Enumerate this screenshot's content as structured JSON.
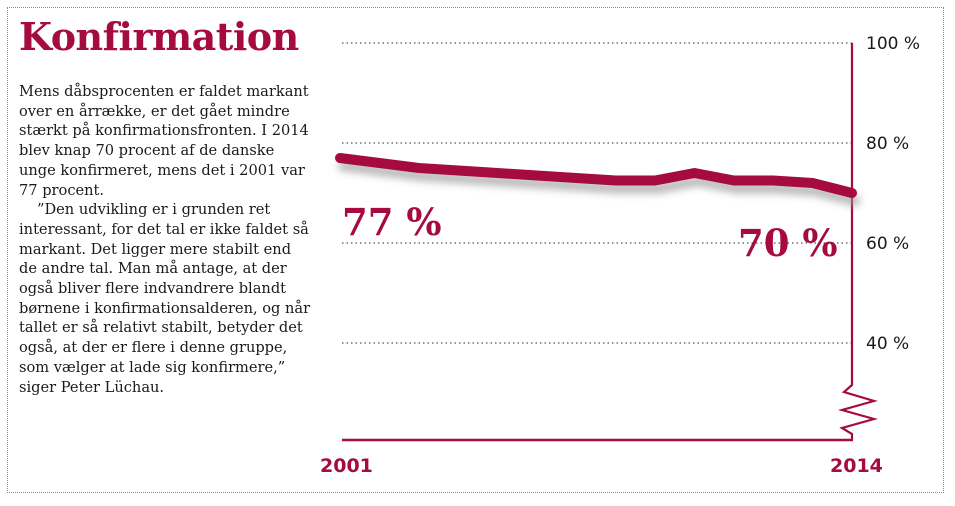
{
  "title": "Konfirmation",
  "paragraphs": [
    "Mens dåbsprocenten er faldet markant over en årrække, er det gået mindre stærkt på konfirmationsfronten. I 2014 blev knap 70 procent af de danske unge konfirmeret, mens det i 2001 var 77 procent.",
    "”Den udvikling er i grunden ret interessant, for det tal er ikke faldet så markant. Det ligger mere stabilt end de andre tal. Man må antage, at der også bliver flere indvandrere blandt børnene i konfirmationsalderen, og når tallet er så relativt stabilt, betyder det også, at der er flere i denne gruppe, som vælger at lade sig konfirmere,” siger Peter Lüchau."
  ],
  "chart_data": {
    "type": "line",
    "x": [
      2001,
      2002,
      2003,
      2004,
      2005,
      2006,
      2007,
      2008,
      2009,
      2010,
      2011,
      2012,
      2013,
      2014
    ],
    "values": [
      77,
      76,
      75,
      74.5,
      74,
      73.5,
      73,
      72.5,
      72.5,
      74,
      72.5,
      72.5,
      72,
      70
    ],
    "ylim": [
      20,
      100
    ],
    "yticks": [
      "100 %",
      "80 %",
      "60 %",
      "40 %"
    ],
    "ytick_values": [
      100,
      80,
      60,
      40
    ],
    "xticks": [
      "2001",
      "2014"
    ],
    "annotations": [
      "77 %",
      "70 %"
    ],
    "axis_break": true,
    "color": "#a50b3e",
    "grid": "dotted"
  }
}
